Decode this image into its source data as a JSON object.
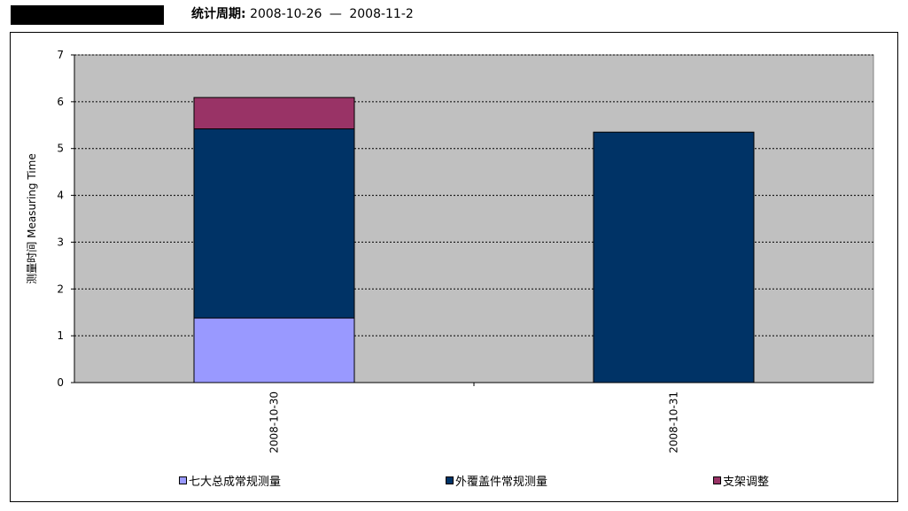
{
  "header": {
    "period_label": "统计周期:",
    "period_start": "2008-10-26",
    "period_sep": "—",
    "period_end": "2008-11-2"
  },
  "chart_data": {
    "type": "bar",
    "stacked": true,
    "categories": [
      "2008-10-30",
      "2008-10-31"
    ],
    "series": [
      {
        "name": "七大总成常规测量",
        "values": [
          1.38,
          0
        ],
        "color": "#9999ff"
      },
      {
        "name": "外覆盖件常规测量",
        "values": [
          4.04,
          5.35
        ],
        "color": "#003366"
      },
      {
        "name": "支架调整",
        "values": [
          0.67,
          0
        ],
        "color": "#993366"
      }
    ],
    "title": "",
    "xlabel": "",
    "ylabel": "测量时间 Measuring Time",
    "ylim": [
      0,
      7
    ],
    "yticks": [
      0,
      1,
      2,
      3,
      4,
      5,
      6,
      7
    ],
    "grid": true,
    "plot_background": "#c0c0c0",
    "legend_position": "bottom"
  }
}
